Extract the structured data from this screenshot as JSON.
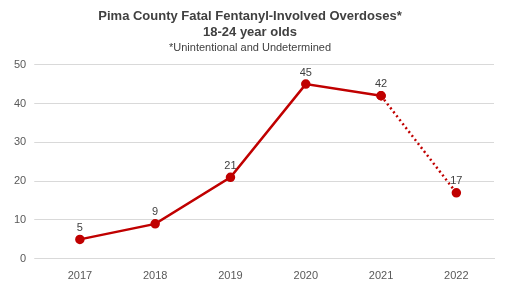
{
  "chart_data": {
    "type": "line",
    "title": [
      "Pima County Fatal Fentanyl-Involved Overdoses*",
      "18-24 year olds"
    ],
    "subtitle": "*Unintentional and Undetermined",
    "categories": [
      "2017",
      "2018",
      "2019",
      "2020",
      "2021",
      "2022"
    ],
    "series": [
      {
        "color": "#c00000",
        "values": [
          5,
          9,
          21,
          45,
          42,
          null
        ],
        "line_style": "solid",
        "marker": "circle"
      },
      {
        "color": "#c00000",
        "values": [
          null,
          null,
          null,
          null,
          42,
          17
        ],
        "line_style": "dotted",
        "marker": "circle"
      }
    ],
    "ylim": [
      0,
      50
    ],
    "yticks": [
      0,
      10,
      20,
      30,
      40,
      50
    ],
    "grid": true,
    "data_labels": true
  }
}
